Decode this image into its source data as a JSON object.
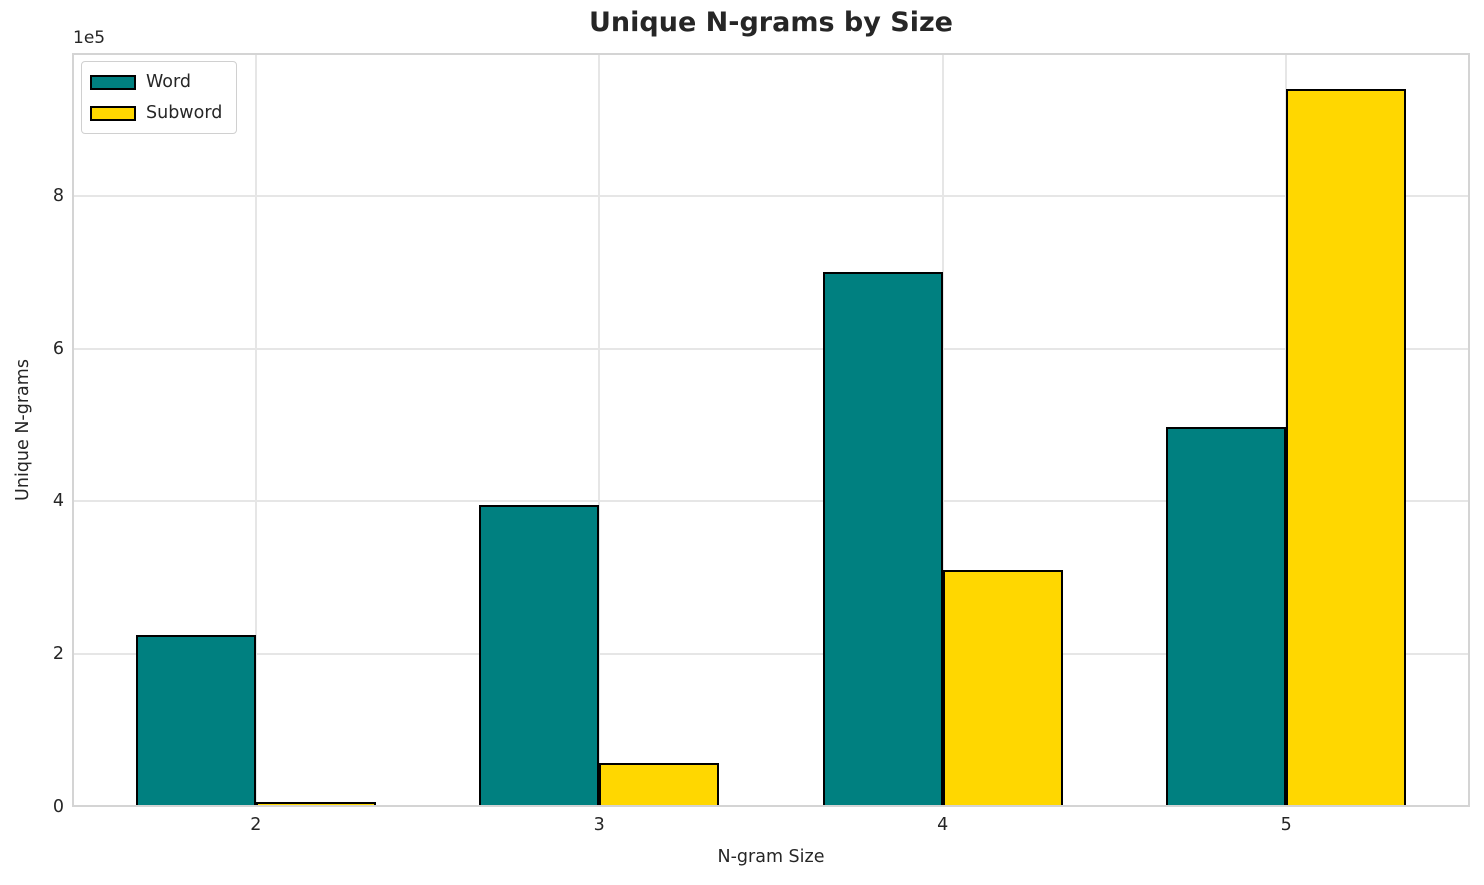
{
  "chart_data": {
    "type": "bar",
    "title": "Unique N-grams by Size",
    "xlabel": "N-gram Size",
    "ylabel": "Unique N-grams",
    "offset_text": "1e5",
    "categories": [
      "2",
      "3",
      "4",
      "5"
    ],
    "series": [
      {
        "name": "Word",
        "color": "#008080",
        "values": [
          225000,
          395000,
          700000,
          497000
        ]
      },
      {
        "name": "Subword",
        "color": "#FFD700",
        "values": [
          7000,
          57000,
          310000,
          940000
        ]
      }
    ],
    "bar_edge_color": "#000000",
    "bar_width": 0.35,
    "xlim": [
      -0.535,
      3.535
    ],
    "ylim": [
      0,
      987000
    ],
    "yticks": {
      "values": [
        0,
        200000,
        400000,
        600000,
        800000
      ],
      "labels": [
        "0",
        "2",
        "4",
        "6",
        "8"
      ]
    },
    "grid": true,
    "grid_color": "#e6e6e6",
    "spine_color": "#d4d4d4",
    "legend": {
      "position": "upper left",
      "entries": [
        "Word",
        "Subword"
      ]
    }
  }
}
